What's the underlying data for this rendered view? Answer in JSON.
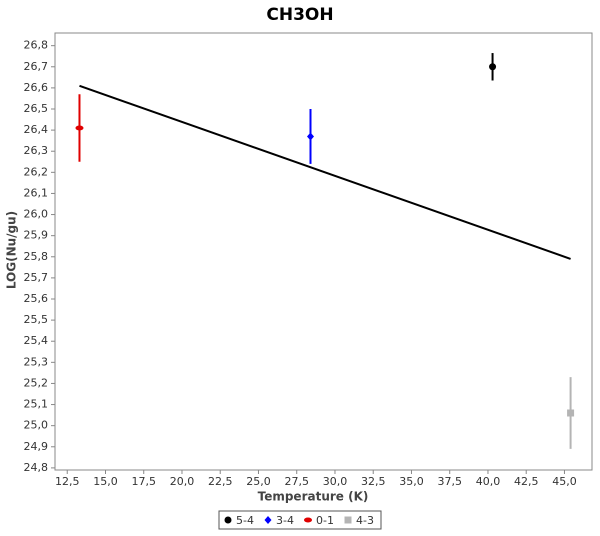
{
  "chart_data": {
    "type": "scatter",
    "title": "CH3OH",
    "x_label": "Temperature (K)",
    "y_label": "LOG(Nu/gu)",
    "xlim": [
      11.7,
      46.8
    ],
    "ylim": [
      24.79,
      26.86
    ],
    "xticks": [
      {
        "value": 12.5,
        "label": "12,5"
      },
      {
        "value": 15,
        "label": "15,0"
      },
      {
        "value": 17.5,
        "label": "17,5"
      },
      {
        "value": 20,
        "label": "20,0"
      },
      {
        "value": 22.5,
        "label": "22,5"
      },
      {
        "value": 25,
        "label": "25,0"
      },
      {
        "value": 27.5,
        "label": "27,5"
      },
      {
        "value": 30,
        "label": "30,0"
      },
      {
        "value": 32.5,
        "label": "32,5"
      },
      {
        "value": 35,
        "label": "35,0"
      },
      {
        "value": 37.5,
        "label": "37,5"
      },
      {
        "value": 40,
        "label": "40,0"
      },
      {
        "value": 42.5,
        "label": "42,5"
      },
      {
        "value": 45,
        "label": "45,0"
      }
    ],
    "yticks": [
      {
        "value": 24.8,
        "label": "24,8"
      },
      {
        "value": 24.9,
        "label": "24,9"
      },
      {
        "value": 25,
        "label": "25,0"
      },
      {
        "value": 25.1,
        "label": "25,1"
      },
      {
        "value": 25.2,
        "label": "25,2"
      },
      {
        "value": 25.3,
        "label": "25,3"
      },
      {
        "value": 25.4,
        "label": "25,4"
      },
      {
        "value": 25.5,
        "label": "25,5"
      },
      {
        "value": 25.6,
        "label": "25,6"
      },
      {
        "value": 25.7,
        "label": "25,7"
      },
      {
        "value": 25.8,
        "label": "25,8"
      },
      {
        "value": 25.9,
        "label": "25,9"
      },
      {
        "value": 26,
        "label": "26,0"
      },
      {
        "value": 26.1,
        "label": "26,1"
      },
      {
        "value": 26.2,
        "label": "26,2"
      },
      {
        "value": 26.3,
        "label": "26,3"
      },
      {
        "value": 26.4,
        "label": "26,4"
      },
      {
        "value": 26.5,
        "label": "26,5"
      },
      {
        "value": 26.6,
        "label": "26,6"
      },
      {
        "value": 26.7,
        "label": "26,7"
      },
      {
        "value": 26.8,
        "label": "26,8"
      }
    ],
    "series": [
      {
        "name": "5-4",
        "color": "#000000",
        "marker": "circle",
        "x": [
          40.3
        ],
        "values": [
          26.7
        ],
        "errors": [
          0.065
        ]
      },
      {
        "name": "3-4",
        "color": "#0000ff",
        "marker": "diamond",
        "x": [
          28.4
        ],
        "values": [
          26.37
        ],
        "errors": [
          0.13
        ]
      },
      {
        "name": "0-1",
        "color": "#e00000",
        "marker": "ellipse",
        "x": [
          13.3
        ],
        "values": [
          26.41
        ],
        "errors": [
          0.16
        ]
      },
      {
        "name": "4-3",
        "color": "#b4b4b4",
        "marker": "square",
        "x": [
          45.4
        ],
        "values": [
          25.06
        ],
        "errors": [
          0.17
        ]
      }
    ],
    "fit_line": {
      "color": "#000000",
      "x": [
        13.3,
        45.4
      ],
      "values": [
        26.61,
        25.79
      ]
    }
  }
}
